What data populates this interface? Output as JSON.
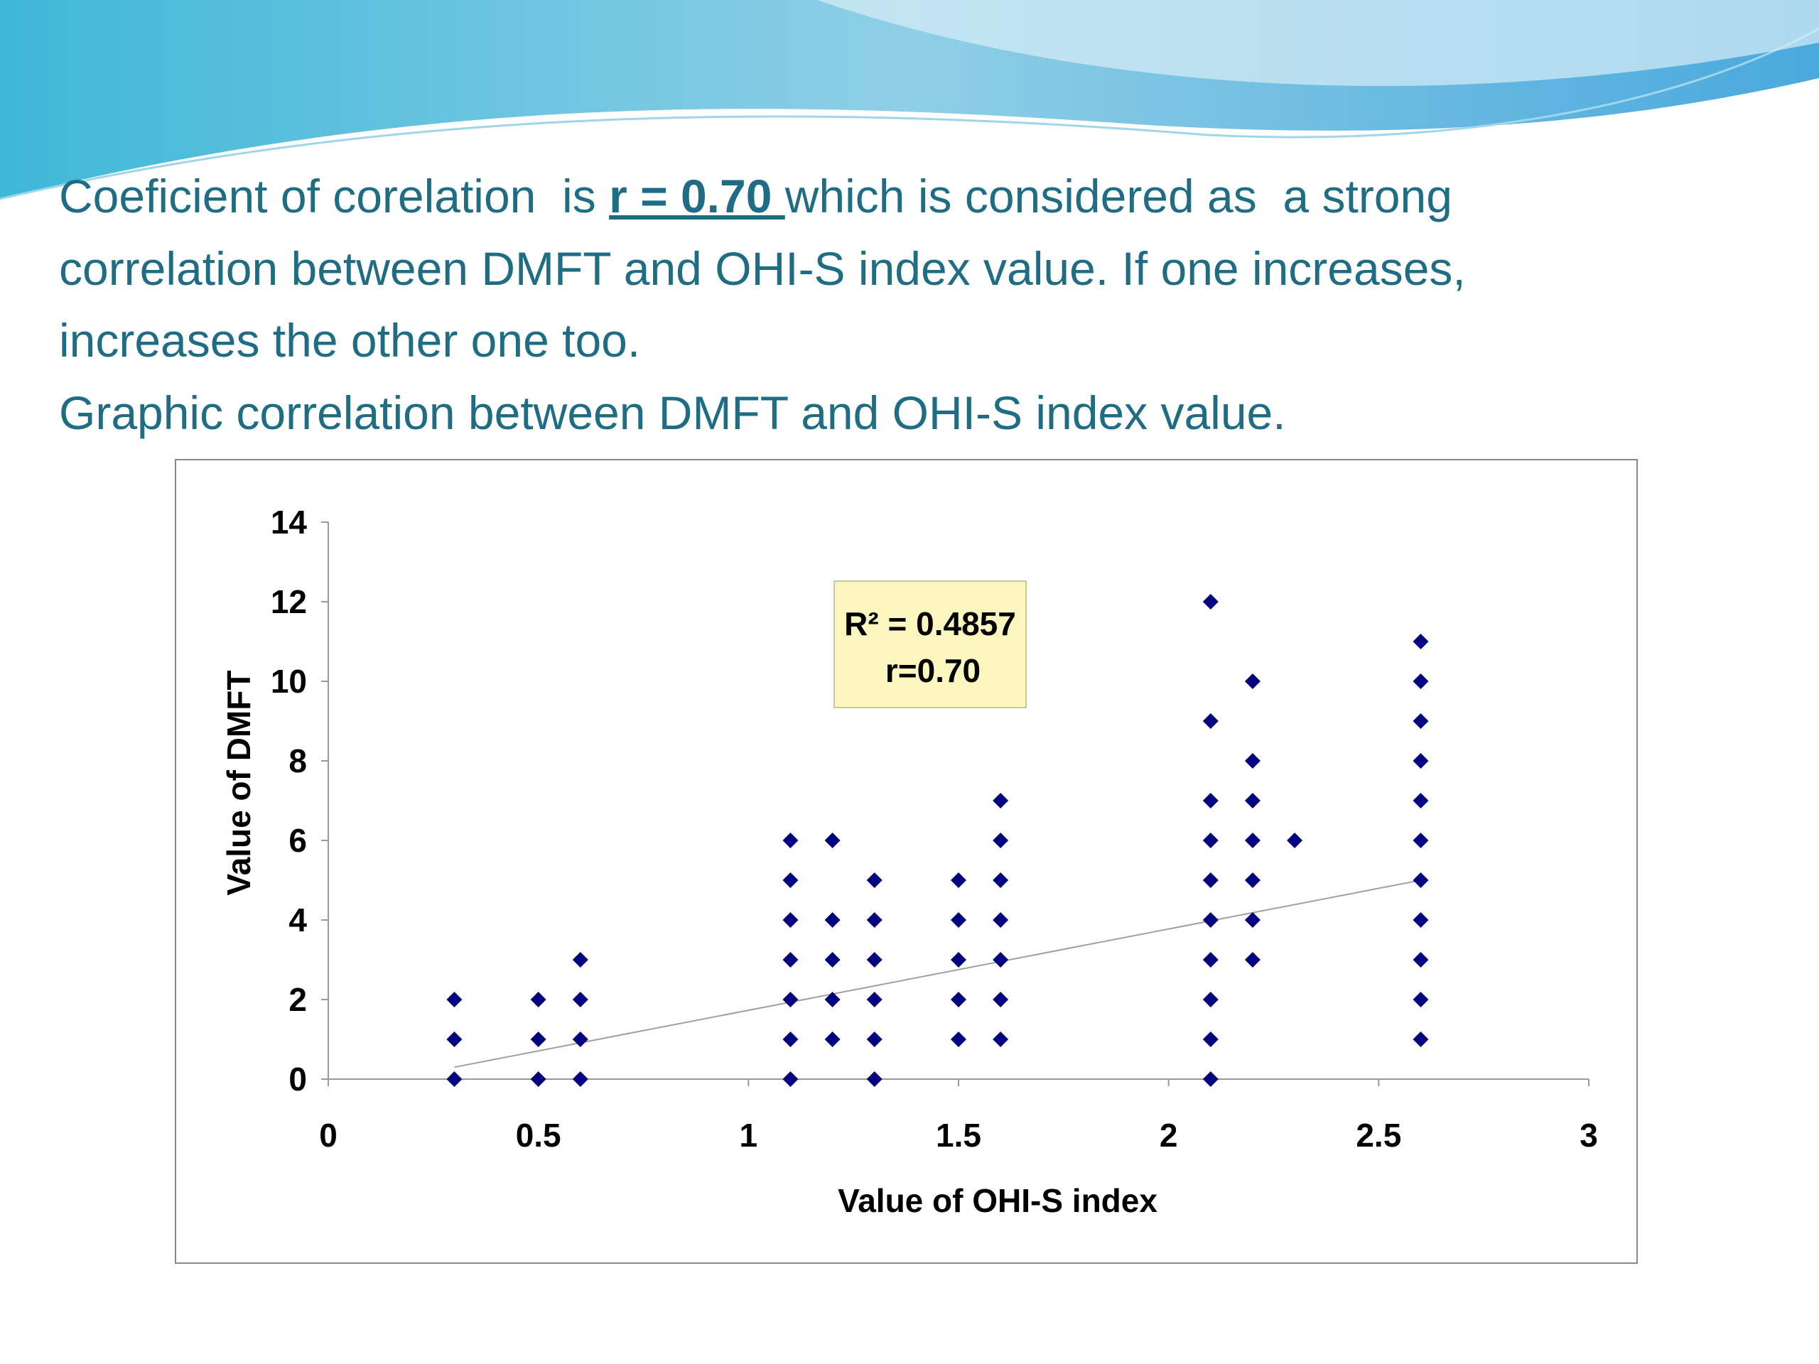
{
  "text": {
    "line1_a": "Coeficient of corelation  is ",
    "line1_r": "r = 0.70 ",
    "line1_b": "which is considered as  a strong",
    "line2": "correlation between DMFT and OHI-S index value. If one increases,",
    "line3": "increases the other one too.",
    "line4": "Graphic correlation between DMFT and OHI-S index value."
  },
  "chart_data": {
    "type": "scatter",
    "x_label": "Value of OHI-S  index",
    "y_label": "Value of  DMFT",
    "annotation": [
      "R² = 0.4857",
      "r=0.70"
    ],
    "x": [
      0.3,
      0.3,
      0.3,
      0.5,
      0.5,
      0.5,
      0.6,
      0.6,
      0.6,
      0.6,
      1.1,
      1.1,
      1.1,
      1.1,
      1.1,
      1.1,
      1.1,
      1.2,
      1.2,
      1.2,
      1.2,
      1.2,
      1.3,
      1.3,
      1.3,
      1.3,
      1.3,
      1.3,
      1.5,
      1.5,
      1.5,
      1.5,
      1.5,
      1.6,
      1.6,
      1.6,
      1.6,
      1.6,
      1.6,
      1.6,
      2.1,
      2.1,
      2.1,
      2.1,
      2.1,
      2.1,
      2.1,
      2.1,
      2.1,
      2.1,
      2.2,
      2.2,
      2.2,
      2.2,
      2.2,
      2.2,
      2.2,
      2.3,
      2.6,
      2.6,
      2.6,
      2.6,
      2.6,
      2.6,
      2.6,
      2.6,
      2.6,
      2.6,
      2.6
    ],
    "values": [
      0,
      1,
      2,
      0,
      1,
      2,
      0,
      1,
      2,
      3,
      0,
      1,
      2,
      3,
      4,
      5,
      6,
      1,
      2,
      3,
      4,
      6,
      0,
      1,
      2,
      3,
      4,
      5,
      1,
      2,
      3,
      4,
      5,
      1,
      2,
      3,
      4,
      5,
      6,
      7,
      0,
      1,
      2,
      3,
      4,
      5,
      6,
      7,
      9,
      12,
      3,
      4,
      5,
      6,
      7,
      8,
      10,
      6,
      1,
      2,
      3,
      4,
      5,
      6,
      7,
      8,
      9,
      10,
      11
    ],
    "color": "#000080",
    "trendline": {
      "x": [
        0.3,
        2.6
      ],
      "values": [
        0.3,
        5.0
      ],
      "color": "#a0a0a0"
    },
    "xlim": [
      0,
      3
    ],
    "xticks": [
      0,
      0.5,
      1,
      1.5,
      2,
      2.5,
      3
    ],
    "ylim": [
      0,
      14
    ],
    "yticks": [
      0,
      2,
      4,
      6,
      8,
      10,
      12,
      14
    ]
  }
}
